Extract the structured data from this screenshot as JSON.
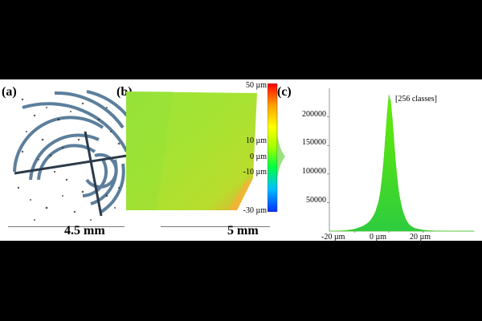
{
  "panels": {
    "a": {
      "label": "(a)",
      "scale": "4.5 mm"
    },
    "b": {
      "label": "(b)",
      "scale": "5 mm"
    },
    "c": {
      "label": "(c)"
    }
  },
  "colorbar": {
    "ticks": [
      "50 µm",
      "10 µm",
      "0 µm",
      "-10 µm",
      "-30 µm"
    ],
    "stops": [
      "#ff0000",
      "#ffa000",
      "#ffff00",
      "#a0ff00",
      "#00ff40",
      "#00c0ff",
      "#0030ff"
    ]
  },
  "chart_data": {
    "type": "area",
    "annotation": "[256 classes]",
    "x_ticks": [
      "-20 µm",
      "0 µm",
      "20 µm"
    ],
    "x_tick_values": [
      -20,
      0,
      20
    ],
    "y_ticks": [
      "50000",
      "100000",
      "150000",
      "200000"
    ],
    "y_tick_values": [
      50000,
      100000,
      150000,
      200000
    ],
    "xlim": [
      -35,
      50
    ],
    "ylim": [
      0,
      250000
    ],
    "grid": false,
    "fill_color_top": "#66ee00",
    "fill_color_bottom": "#2ecc40",
    "x": [
      -35,
      -30,
      -25,
      -20,
      -15,
      -12,
      -10,
      -8,
      -6,
      -5,
      -4,
      -3,
      -2,
      -1,
      0,
      1,
      2,
      3,
      4,
      5,
      6,
      8,
      10,
      12,
      15,
      20,
      25,
      30,
      40,
      50
    ],
    "y": [
      0,
      300,
      1200,
      3500,
      9000,
      15000,
      22000,
      33000,
      52000,
      68000,
      92000,
      125000,
      165000,
      205000,
      238000,
      228000,
      195000,
      155000,
      118000,
      88000,
      64000,
      36000,
      20000,
      11000,
      5000,
      1800,
      700,
      250,
      60,
      0
    ]
  }
}
